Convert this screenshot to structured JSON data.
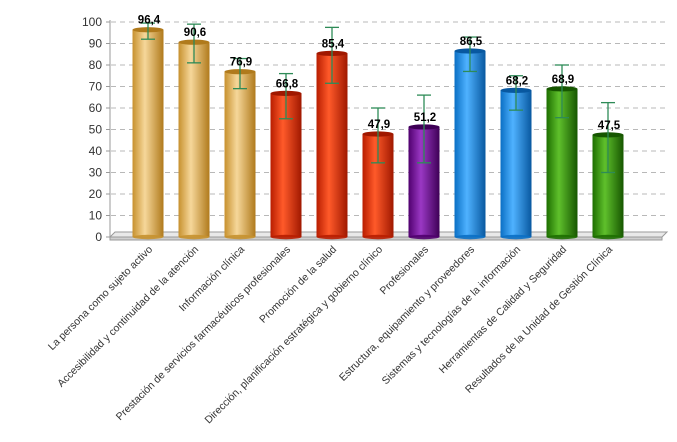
{
  "chart_data": {
    "type": "bar",
    "title": "",
    "xlabel": "",
    "ylabel": "",
    "ylim": [
      0,
      100
    ],
    "yticks": [
      "0",
      "10",
      "20",
      "30",
      "40",
      "50",
      "60",
      "70",
      "80",
      "90",
      "100"
    ],
    "grid": true,
    "categories": [
      "La persona como sujeto activo",
      "Accesibilidad y continuidad de la atención",
      "Información clínica",
      "Prestación de servicios farmacéuticos profesionales",
      "Promoción de la salud",
      "Dirección, planificación estratégica y gobierno clínico",
      "Profesionales",
      "Estructura, equipamiento y proveedores",
      "Sistemas y tecnologías de la información",
      "Herramientas de Calidad y Seguridad",
      "Resultados de la Unidad de Gestión Clínica"
    ],
    "values": [
      96.4,
      90.6,
      76.9,
      66.8,
      85.4,
      47.9,
      51.2,
      86.5,
      68.2,
      68.9,
      47.5
    ],
    "value_labels": [
      "96,4",
      "90,6",
      "76,9",
      "66,8",
      "85,4",
      "47,9",
      "51,2",
      "86,5",
      "68,2",
      "68,9",
      "47,5"
    ],
    "error_low": [
      92,
      81,
      69,
      55,
      71.5,
      34.5,
      34.5,
      77,
      59,
      55.5,
      30
    ],
    "error_high": [
      99.5,
      99,
      83,
      76,
      97.5,
      60,
      66,
      93,
      75,
      80,
      62.5
    ],
    "groups": [
      "gold",
      "gold",
      "gold",
      "red",
      "red",
      "red",
      "purple",
      "blue",
      "blue",
      "green",
      "green"
    ],
    "colors": {
      "gold": [
        "#c7912e",
        "#f6d79a",
        "#b07a1c"
      ],
      "red": [
        "#b81d00",
        "#ff5a2a",
        "#a01800"
      ],
      "purple": [
        "#50006e",
        "#9a38c4",
        "#3e0056"
      ],
      "blue": [
        "#0a6fc4",
        "#4fb2ff",
        "#0858a0"
      ],
      "green": [
        "#1d6e00",
        "#5fc02c",
        "#165600"
      ],
      "error_bar": "#2e8b57",
      "grid": "#b8b8b8"
    }
  }
}
